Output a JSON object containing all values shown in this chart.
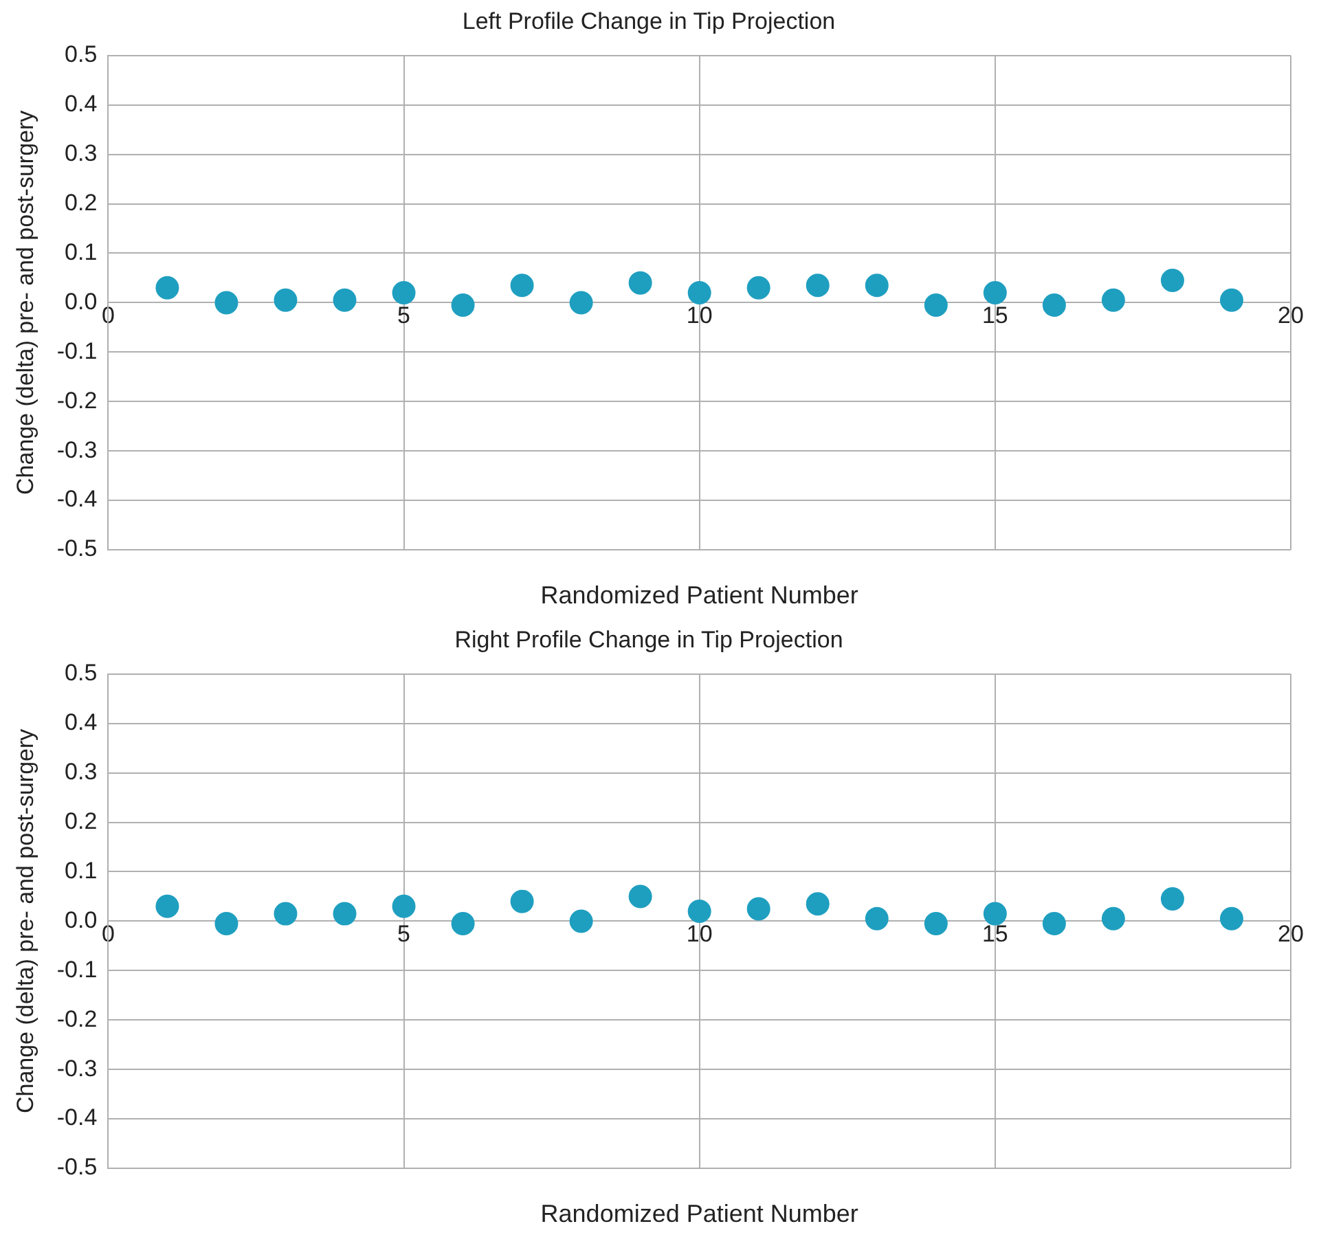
{
  "chart_data": [
    {
      "type": "scatter",
      "title": "Left Profile Change in Tip Projection",
      "xlabel": "Randomized Patient Number",
      "ylabel": "Change (delta) pre- and post-surgery",
      "x": [
        1,
        2,
        3,
        4,
        5,
        6,
        7,
        8,
        9,
        10,
        11,
        12,
        13,
        14,
        15,
        16,
        17,
        18,
        19
      ],
      "series": [
        {
          "color": "#1f9fc0",
          "values": [
            0.03,
            0.0,
            0.005,
            0.005,
            0.02,
            -0.005,
            0.035,
            0.0,
            0.04,
            0.02,
            0.03,
            0.035,
            0.035,
            -0.005,
            0.02,
            -0.005,
            0.005,
            0.045,
            0.005
          ]
        }
      ],
      "xlim": [
        0,
        20
      ],
      "xticks": [
        0,
        5,
        10,
        15,
        20
      ],
      "ylim": [
        -0.5,
        0.5
      ],
      "yticks": [
        {
          "value": -0.5,
          "label": "-0.5"
        },
        {
          "value": -0.4,
          "label": "-0.4"
        },
        {
          "value": -0.3,
          "label": "-0.3"
        },
        {
          "value": -0.2,
          "label": "-0.2"
        },
        {
          "value": -0.1,
          "label": "-0.1"
        },
        {
          "value": 0,
          "label": "0.0"
        },
        {
          "value": 0.1,
          "label": "0.1"
        },
        {
          "value": 0.2,
          "label": "0.2"
        },
        {
          "value": 0.3,
          "label": "0.3"
        },
        {
          "value": 0.4,
          "label": "0.4"
        },
        {
          "value": 0.5,
          "label": "0.5"
        }
      ],
      "grid": true,
      "marker": "circle",
      "legend": false
    },
    {
      "type": "scatter",
      "title": "Right Profile Change in Tip Projection",
      "xlabel": "Randomized Patient Number",
      "ylabel": "Change (delta) pre- and post-surgery",
      "x": [
        1,
        2,
        3,
        4,
        5,
        6,
        7,
        8,
        9,
        10,
        11,
        12,
        13,
        14,
        15,
        16,
        17,
        18,
        19
      ],
      "series": [
        {
          "color": "#1f9fc0",
          "values": [
            0.03,
            -0.005,
            0.015,
            0.015,
            0.03,
            -0.005,
            0.04,
            0.0,
            0.05,
            0.02,
            0.025,
            0.035,
            0.005,
            -0.005,
            0.015,
            -0.005,
            0.005,
            0.045,
            0.005
          ]
        }
      ],
      "xlim": [
        0,
        20
      ],
      "xticks": [
        0,
        5,
        10,
        15,
        20
      ],
      "ylim": [
        -0.5,
        0.5
      ],
      "yticks": [
        {
          "value": -0.5,
          "label": "-0.5"
        },
        {
          "value": -0.4,
          "label": "-0.4"
        },
        {
          "value": -0.3,
          "label": "-0.3"
        },
        {
          "value": -0.2,
          "label": "-0.2"
        },
        {
          "value": -0.1,
          "label": "-0.1"
        },
        {
          "value": 0,
          "label": "0.0"
        },
        {
          "value": 0.1,
          "label": "0.1"
        },
        {
          "value": 0.2,
          "label": "0.2"
        },
        {
          "value": 0.3,
          "label": "0.3"
        },
        {
          "value": 0.4,
          "label": "0.4"
        },
        {
          "value": 0.5,
          "label": "0.5"
        }
      ],
      "grid": true,
      "marker": "circle",
      "legend": false
    }
  ]
}
